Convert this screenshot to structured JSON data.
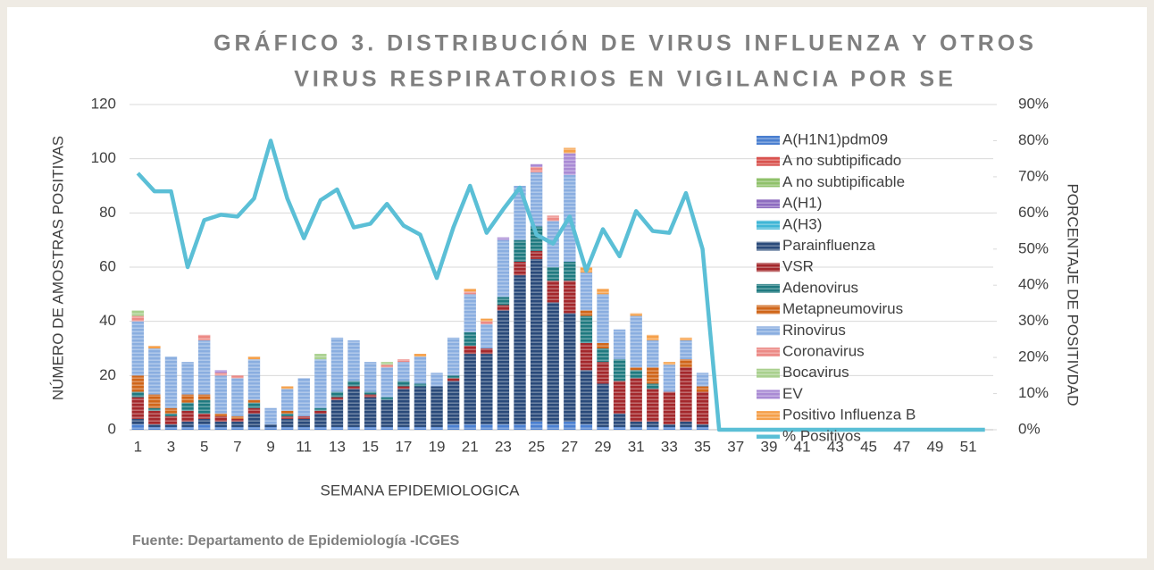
{
  "chart_data": {
    "type": "bar",
    "stacked": true,
    "title_lines": [
      "GRÁFICO 3. DISTRIBUCIÓN DE VIRUS INFLUENZA Y OTROS",
      "VIRUS RESPIRATORIOS EN VIGILANCIA POR SE"
    ],
    "x_label": "SEMANA EPIDEMIOLOGICA",
    "y_label": "NÚMERO DE AMOSTRAS POSITIVAS",
    "y2_label": "PORCENTAJE DE POSITIVDAD",
    "source": "Fuente: Departamento de Epidemiología -ICGES",
    "categories": [
      1,
      null,
      3,
      null,
      5,
      null,
      7,
      null,
      9,
      null,
      11,
      null,
      13,
      null,
      15,
      null,
      17,
      null,
      19,
      null,
      21,
      null,
      23,
      null,
      25,
      null,
      27,
      null,
      29,
      null,
      31,
      null,
      33,
      null,
      35,
      null,
      37,
      null,
      39,
      null,
      41,
      null,
      43,
      null,
      45,
      null,
      47,
      null,
      49,
      null,
      51,
      null
    ],
    "ylim": [
      0,
      120
    ],
    "yticks": [
      0,
      20,
      40,
      60,
      80,
      100,
      120
    ],
    "y2lim": [
      0,
      90
    ],
    "y2ticks": [
      {
        "value": 0,
        "label": "0%"
      },
      {
        "value": 10,
        "label": "10%"
      },
      {
        "value": 20,
        "label": "20%"
      },
      {
        "value": 30,
        "label": "30%"
      },
      {
        "value": 40,
        "label": "40%"
      },
      {
        "value": 50,
        "label": "50%"
      },
      {
        "value": 60,
        "label": "60%"
      },
      {
        "value": 70,
        "label": "70%"
      },
      {
        "value": 80,
        "label": "80%"
      },
      {
        "value": 90,
        "label": "90%"
      }
    ],
    "grid": true,
    "legend": "right",
    "series": [
      {
        "name": "A(H1N1)pdm09",
        "color": "#4a7fd0",
        "values": [
          2,
          1,
          1,
          1,
          2,
          1,
          1,
          1,
          1,
          1,
          1,
          1,
          1,
          1,
          1,
          1,
          1,
          1,
          1,
          2,
          2,
          2,
          2,
          2,
          3,
          2,
          3,
          2,
          1,
          1,
          1,
          1,
          1,
          1,
          1,
          0,
          0,
          0,
          0,
          0,
          0,
          0,
          0,
          0,
          0,
          0,
          0,
          0,
          0,
          0,
          0,
          0
        ]
      },
      {
        "name": "A no subtipificado",
        "color": "#d9534f",
        "values": [
          0,
          0,
          0,
          0,
          0,
          0,
          0,
          0,
          0,
          0,
          0,
          0,
          0,
          0,
          0,
          0,
          0,
          0,
          0,
          0,
          0,
          0,
          0,
          0,
          0,
          0,
          0,
          0,
          0,
          0,
          0,
          0,
          0,
          0,
          0,
          0,
          0,
          0,
          0,
          0,
          0,
          0,
          0,
          0,
          0,
          0,
          0,
          0,
          0,
          0,
          0,
          0
        ]
      },
      {
        "name": "A no subtipificable",
        "color": "#8fc16a",
        "values": [
          0,
          0,
          0,
          0,
          0,
          0,
          0,
          0,
          0,
          0,
          0,
          0,
          0,
          0,
          0,
          0,
          0,
          0,
          0,
          0,
          0,
          0,
          0,
          0,
          0,
          0,
          0,
          0,
          0,
          0,
          0,
          0,
          0,
          0,
          0,
          0,
          0,
          0,
          0,
          0,
          0,
          0,
          0,
          0,
          0,
          0,
          0,
          0,
          0,
          0,
          0,
          0
        ]
      },
      {
        "name": "A(H1)",
        "color": "#8e6cc0",
        "values": [
          0,
          0,
          0,
          0,
          0,
          0,
          0,
          0,
          0,
          0,
          0,
          0,
          0,
          0,
          0,
          0,
          0,
          0,
          0,
          0,
          0,
          0,
          0,
          0,
          0,
          0,
          0,
          0,
          0,
          0,
          0,
          0,
          0,
          0,
          0,
          0,
          0,
          0,
          0,
          0,
          0,
          0,
          0,
          0,
          0,
          0,
          0,
          0,
          0,
          0,
          0,
          0
        ]
      },
      {
        "name": "A(H3)",
        "color": "#3fb6d6",
        "values": [
          0,
          0,
          0,
          0,
          0,
          0,
          0,
          0,
          0,
          0,
          0,
          0,
          0,
          0,
          0,
          0,
          0,
          0,
          0,
          0,
          0,
          0,
          0,
          0,
          0,
          0,
          0,
          0,
          0,
          0,
          0,
          0,
          0,
          0,
          0,
          0,
          0,
          0,
          0,
          0,
          0,
          0,
          0,
          0,
          0,
          0,
          0,
          0,
          0,
          0,
          0,
          0
        ]
      },
      {
        "name": "Parainfluenza",
        "color": "#2a4a7a",
        "values": [
          2,
          1,
          1,
          2,
          2,
          2,
          2,
          5,
          1,
          3,
          3,
          5,
          10,
          14,
          11,
          10,
          14,
          15,
          15,
          16,
          26,
          26,
          42,
          55,
          60,
          45,
          40,
          20,
          16,
          5,
          2,
          2,
          1,
          2,
          1,
          0,
          0,
          0,
          0,
          0,
          0,
          0,
          0,
          0,
          0,
          0,
          0,
          0,
          0,
          0,
          0,
          0
        ]
      },
      {
        "name": "VSR",
        "color": "#a4282c",
        "values": [
          8,
          5,
          3,
          4,
          2,
          2,
          1,
          2,
          0,
          1,
          1,
          1,
          1,
          1,
          1,
          0,
          1,
          0,
          0,
          1,
          3,
          2,
          2,
          5,
          3,
          8,
          12,
          10,
          8,
          12,
          16,
          12,
          12,
          20,
          12,
          0,
          0,
          0,
          0,
          0,
          0,
          0,
          0,
          0,
          0,
          0,
          0,
          0,
          0,
          0,
          0,
          0
        ]
      },
      {
        "name": "Adenovirus",
        "color": "#1f7a80",
        "values": [
          2,
          1,
          1,
          3,
          5,
          0,
          0,
          2,
          0,
          1,
          0,
          1,
          2,
          2,
          1,
          1,
          2,
          1,
          0,
          1,
          5,
          0,
          3,
          8,
          9,
          5,
          7,
          10,
          5,
          8,
          3,
          2,
          0,
          0,
          0,
          0,
          0,
          0,
          0,
          0,
          0,
          0,
          0,
          0,
          0,
          0,
          0,
          0,
          0,
          0,
          0,
          0
        ]
      },
      {
        "name": "Metapneumovirus",
        "color": "#d0661a",
        "values": [
          6,
          5,
          2,
          3,
          2,
          1,
          1,
          1,
          0,
          1,
          0,
          0,
          0,
          0,
          0,
          0,
          0,
          0,
          0,
          0,
          0,
          0,
          0,
          0,
          0,
          0,
          0,
          2,
          2,
          0,
          1,
          6,
          0,
          3,
          2,
          0,
          0,
          0,
          0,
          0,
          0,
          0,
          0,
          0,
          0,
          0,
          0,
          0,
          0,
          0,
          0,
          0
        ]
      },
      {
        "name": "Rinovirus",
        "color": "#8aaee0",
        "values": [
          20,
          17,
          19,
          12,
          20,
          14,
          14,
          15,
          6,
          8,
          14,
          18,
          20,
          15,
          11,
          11,
          7,
          10,
          5,
          14,
          14,
          9,
          21,
          20,
          20,
          17,
          32,
          14,
          18,
          11,
          19,
          10,
          10,
          7,
          5,
          0,
          0,
          0,
          0,
          0,
          0,
          0,
          0,
          0,
          0,
          0,
          0,
          0,
          0,
          0,
          0,
          0
        ]
      },
      {
        "name": "Coronavirus",
        "color": "#ec8a86",
        "values": [
          2,
          0,
          0,
          0,
          2,
          1,
          1,
          0,
          0,
          0,
          0,
          0,
          0,
          0,
          0,
          1,
          1,
          0,
          0,
          0,
          1,
          1,
          0,
          0,
          2,
          2,
          0,
          0,
          0,
          0,
          0,
          0,
          0,
          0,
          0,
          0,
          0,
          0,
          0,
          0,
          0,
          0,
          0,
          0,
          0,
          0,
          0,
          0,
          0,
          0,
          0,
          0
        ]
      },
      {
        "name": "Bocavirus",
        "color": "#a9d08e",
        "values": [
          2,
          0,
          0,
          0,
          0,
          0,
          0,
          0,
          0,
          0,
          0,
          2,
          0,
          0,
          0,
          1,
          0,
          0,
          0,
          0,
          0,
          0,
          0,
          0,
          0,
          0,
          0,
          0,
          0,
          0,
          0,
          0,
          0,
          0,
          0,
          0,
          0,
          0,
          0,
          0,
          0,
          0,
          0,
          0,
          0,
          0,
          0,
          0,
          0,
          0,
          0,
          0
        ]
      },
      {
        "name": "EV",
        "color": "#a98ad4",
        "values": [
          0,
          0,
          0,
          0,
          0,
          1,
          0,
          0,
          0,
          0,
          0,
          0,
          0,
          0,
          0,
          0,
          0,
          0,
          0,
          0,
          0,
          0,
          1,
          0,
          1,
          0,
          8,
          0,
          0,
          0,
          0,
          0,
          0,
          0,
          0,
          0,
          0,
          0,
          0,
          0,
          0,
          0,
          0,
          0,
          0,
          0,
          0,
          0,
          0,
          0,
          0,
          0
        ]
      },
      {
        "name": "Positivo Influenza  B",
        "color": "#f5a04a",
        "values": [
          0,
          1,
          0,
          0,
          0,
          0,
          0,
          1,
          0,
          1,
          0,
          0,
          0,
          0,
          0,
          0,
          0,
          1,
          0,
          0,
          1,
          1,
          0,
          0,
          0,
          0,
          2,
          2,
          2,
          0,
          1,
          2,
          1,
          1,
          0,
          0,
          0,
          0,
          0,
          0,
          0,
          0,
          0,
          0,
          0,
          0,
          0,
          0,
          0,
          0,
          0,
          0
        ]
      },
      {
        "name": "% Positivos",
        "color": "#5bbfd6",
        "axis": "y2",
        "values": [
          71,
          66,
          66,
          45,
          58,
          59.5,
          59,
          64,
          80,
          64,
          53,
          63.5,
          66.5,
          56,
          57,
          62.5,
          56.5,
          54,
          42,
          56,
          67.5,
          54.5,
          61,
          67,
          54,
          51.5,
          59,
          44,
          55.5,
          48,
          60.5,
          55,
          54.5,
          65.5,
          50,
          0,
          0,
          0,
          0,
          0,
          0,
          0,
          0,
          0,
          0,
          0,
          0,
          0,
          0,
          0,
          0,
          0
        ]
      }
    ]
  }
}
